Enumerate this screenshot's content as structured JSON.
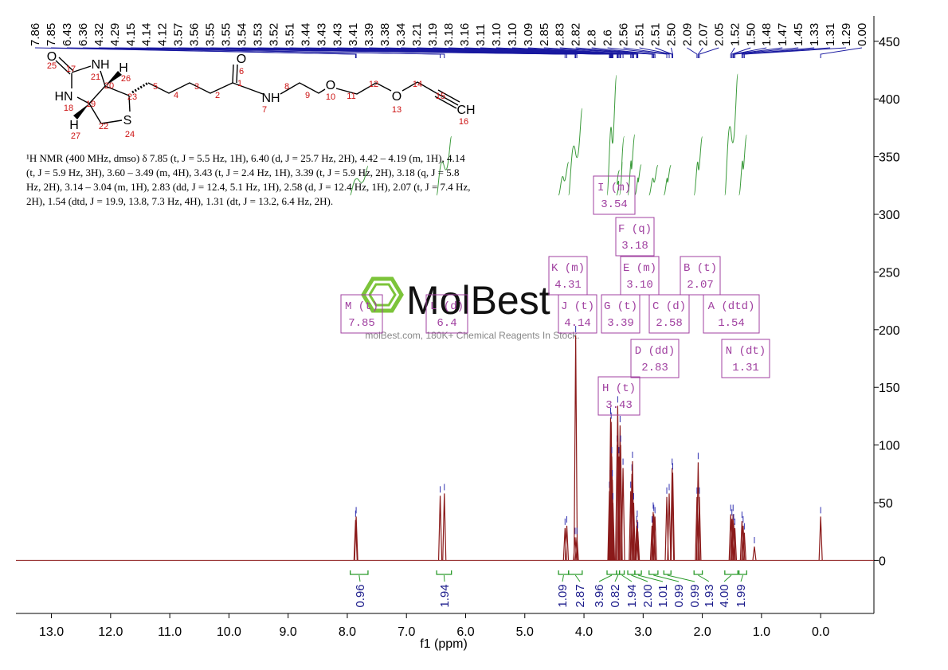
{
  "chart_data": {
    "type": "nmr",
    "x_label": "f1 (ppm)",
    "xlim": [
      13.6,
      -0.9
    ],
    "xticks": [
      {
        "value": 13,
        "label": "13.0"
      },
      {
        "value": 12,
        "label": "12.0"
      },
      {
        "value": 11,
        "label": "11.0"
      },
      {
        "value": 10,
        "label": "10.0"
      },
      {
        "value": 9,
        "label": "9.0"
      },
      {
        "value": 8,
        "label": "8.0"
      },
      {
        "value": 7,
        "label": "7.0"
      },
      {
        "value": 6,
        "label": "6.0"
      },
      {
        "value": 5,
        "label": "5.0"
      },
      {
        "value": 4,
        "label": "4.0"
      },
      {
        "value": 3,
        "label": "3.0"
      },
      {
        "value": 2,
        "label": "2.0"
      },
      {
        "value": 1,
        "label": "1.0"
      },
      {
        "value": 0,
        "label": "0.0"
      }
    ],
    "ylim": [
      -46,
      472
    ],
    "yticks": [
      0,
      50,
      100,
      150,
      200,
      250,
      300,
      350,
      400,
      450
    ],
    "color": "#8b1a1a",
    "peaks": {
      "x": [
        7.86,
        7.85,
        6.43,
        6.36,
        4.32,
        4.29,
        4.15,
        4.14,
        4.12,
        3.57,
        3.56,
        3.55,
        3.54,
        3.53,
        3.52,
        3.51,
        3.44,
        3.43,
        3.41,
        3.39,
        3.38,
        3.34,
        3.21,
        3.19,
        3.18,
        3.16,
        3.11,
        3.1,
        3.09,
        2.85,
        2.83,
        2.82,
        2.8,
        2.6,
        2.56,
        2.51,
        2.5,
        2.09,
        2.07,
        2.05,
        1.52,
        1.5,
        1.48,
        1.47,
        1.45,
        1.33,
        1.31,
        1.29,
        1.12,
        0.0
      ],
      "y": [
        35,
        38,
        56,
        58,
        28,
        30,
        20,
        195,
        20,
        60,
        70,
        124,
        120,
        90,
        70,
        50,
        100,
        134,
        90,
        117,
        100,
        80,
        60,
        75,
        86,
        50,
        30,
        35,
        25,
        30,
        42,
        40,
        38,
        55,
        58,
        80,
        76,
        55,
        85,
        55,
        40,
        36,
        40,
        32,
        28,
        34,
        30,
        24,
        12,
        38
      ]
    },
    "peak_labels": [
      7.86,
      7.85,
      6.43,
      6.36,
      4.32,
      4.29,
      4.15,
      4.14,
      4.12,
      3.57,
      3.56,
      3.55,
      3.55,
      3.54,
      3.53,
      3.52,
      3.51,
      3.44,
      3.43,
      3.43,
      3.41,
      3.39,
      3.38,
      3.34,
      3.21,
      3.19,
      3.18,
      3.16,
      3.11,
      {
        "value": 3.1,
        "label": "3.10"
      },
      {
        "value": 3.1,
        "label": "3.10"
      },
      3.09,
      2.85,
      2.83,
      2.82,
      2.8,
      2.6,
      2.56,
      2.51,
      2.51,
      {
        "value": 2.5,
        "label": "2.50"
      },
      2.09,
      2.07,
      2.05,
      1.52,
      {
        "value": 1.5,
        "label": "1.50"
      },
      1.48,
      1.47,
      1.45,
      1.33,
      1.31,
      1.29,
      {
        "value": 0,
        "label": "0.00"
      }
    ],
    "integrals": {
      "ranges": [
        [
          7.95,
          7.65
        ],
        [
          6.49,
          6.24
        ],
        [
          4.43,
          4.26
        ],
        [
          4.26,
          4.03
        ],
        [
          3.61,
          3.45
        ],
        [
          3.45,
          3.4
        ],
        [
          3.4,
          3.32
        ],
        [
          3.26,
          3.14
        ],
        [
          3.14,
          3.03
        ],
        [
          2.9,
          2.75
        ],
        [
          2.65,
          2.53
        ],
        [
          2.14,
          2.0
        ],
        [
          1.62,
          1.4
        ],
        [
          1.38,
          1.25
        ]
      ],
      "values": [
        0.96,
        1.94,
        1.09,
        2.87,
        3.96,
        0.82,
        1.94,
        2.0,
        1.01,
        0.99,
        0.99,
        1.93,
        4.0,
        1.99
      ],
      "value_labels": [
        "0.96",
        "1.94",
        "1.09",
        "2.87",
        "3.96",
        "0.82",
        "1.94",
        "2.00",
        "1.01",
        "0.99",
        "0.99",
        "1.93",
        "4.00",
        "1.99"
      ]
    },
    "multiplets": [
      {
        "name": "I (m)",
        "shift": 3.54
      },
      {
        "name": "F (q)",
        "shift": 3.18
      },
      {
        "name": "K (m)",
        "shift": 4.31
      },
      {
        "name": "E (m)",
        "shift": {
          "value": 3.1,
          "label": "3.10"
        }
      },
      {
        "name": "B (t)",
        "shift": 2.07
      },
      {
        "name": "M (t)",
        "shift": 7.85
      },
      {
        "name": "L (d)",
        "shift": 6.4
      },
      {
        "name": "J (t)",
        "shift": 4.14
      },
      {
        "name": "G (t)",
        "shift": 3.39
      },
      {
        "name": "C (d)",
        "shift": 2.58
      },
      {
        "name": "A (dtd)",
        "shift": 1.54
      },
      {
        "name": "D (dd)",
        "shift": 2.83
      },
      {
        "name": "N (dt)",
        "shift": 1.31
      },
      {
        "name": "H (t)",
        "shift": 3.43
      }
    ]
  },
  "description": "¹H NMR (400 MHz, dmso) δ 7.85 (t, J = 5.5 Hz, 1H), 6.40 (d, J = 25.7 Hz, 2H), 4.42 – 4.19 (m, 1H), 4.14 (t, J = 5.9 Hz, 3H), 3.60 – 3.49 (m, 4H), 3.43 (t, J = 2.4 Hz, 1H), 3.39 (t, J = 5.9 Hz, 2H), 3.18 (q, J = 5.8 Hz, 2H), 3.14 – 3.04 (m, 1H), 2.83 (dd, J = 12.4, 5.1 Hz, 1H), 2.58 (d, J = 12.4 Hz, 1H), 2.07 (t, J = 7.4 Hz, 2H), 1.54 (dtd, J = 19.9, 13.8, 7.3 Hz, 4H), 1.31 (dt, J = 13.2, 6.4 Hz, 2H).",
  "structure": {
    "atoms": [
      "O",
      "NH",
      "H",
      "HN",
      "H",
      "S",
      "O",
      "NH",
      "O",
      "O",
      "CH"
    ],
    "numbers": [
      25,
      17,
      21,
      26,
      20,
      18,
      19,
      23,
      5,
      4,
      3,
      2,
      1,
      6,
      8,
      7,
      9,
      10,
      11,
      12,
      13,
      14,
      15,
      16,
      22,
      24,
      27
    ]
  },
  "watermark": {
    "brand": "MolBest",
    "tagline": "molBest.com, 180K+ Chemical Reagents In Stock."
  }
}
